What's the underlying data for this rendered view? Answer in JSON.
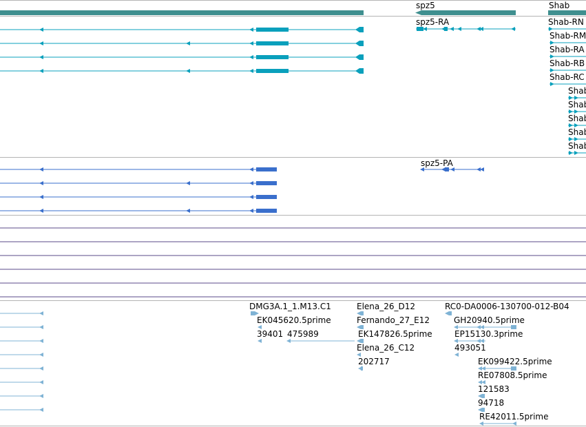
{
  "colors": {
    "gene": "#3f8f8f",
    "transcript": "#0aa0bc",
    "protein": "#3a6fcc",
    "variation": "#5a4a8a",
    "est": "#7fb3d5",
    "separator": "#b4b4b4"
  },
  "genes": {
    "spz5": "spz5",
    "shab": "Shab"
  },
  "transcripts": {
    "spz5_ra": "spz5-RA",
    "shab_rn": "Shab-RN",
    "shab_rm": "Shab-RM",
    "shab_ra": "Shab-RA",
    "shab_rb": "Shab-RB",
    "shab_rc": "Shab-RC",
    "shab_5": "Shab",
    "shab_6": "Shab",
    "shab_7": "Shab",
    "shab_8": "Shab",
    "shab_9": "Shab"
  },
  "proteins": {
    "spz5_pa": "spz5-PA"
  },
  "ests": {
    "e1": "DMG3A.1_1.M13.C1",
    "e2": "EK045620.5prime",
    "e3": "39401",
    "e4": "475989",
    "e5": "Elena_26_D12",
    "e6": "Fernando_27_E12",
    "e7": "EK147826.5prime",
    "e8": "Elena_26_C12",
    "e9": "202717",
    "e10": "RC0-DA0006-130700-012-B04",
    "e11": "GH20940.5prime",
    "e12": "EP15130.3prime",
    "e13": "493051",
    "e14": "EK099422.5prime",
    "e15": "RE07808.5prime",
    "e16": "121583",
    "e17": "94718",
    "e18": "RE42011.5prime"
  }
}
